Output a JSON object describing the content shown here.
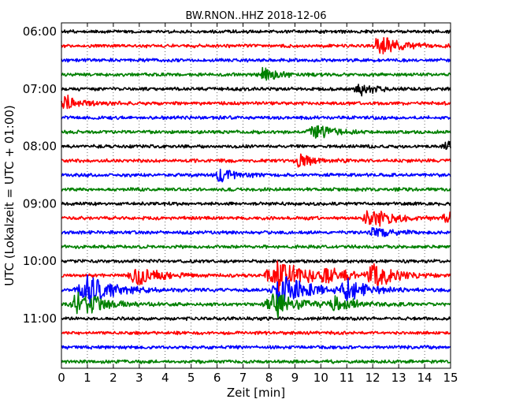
{
  "chart_data": {
    "type": "line",
    "title": "BW.RNON..HHZ 2018-12-06",
    "xlabel": "Zeit  [min]",
    "ylabel": "UTC (Lokalzeit = UTC + 01:00)",
    "xlim": [
      0,
      15
    ],
    "x_ticks": [
      "0",
      "1",
      "2",
      "3",
      "4",
      "5",
      "6",
      "7",
      "8",
      "9",
      "10",
      "11",
      "12",
      "13",
      "14",
      "15"
    ],
    "y_ticks": [
      "06:00",
      "07:00",
      "08:00",
      "09:00",
      "10:00",
      "11:00"
    ],
    "trace_minutes": 15,
    "first_trace": "06:00",
    "trace_colors": [
      "#000000",
      "#ff0000",
      "#0000ff",
      "#008000"
    ],
    "grid": "dotted vertical",
    "traces": [
      {
        "start": "06:00",
        "color": "#000000",
        "events": []
      },
      {
        "start": "06:15",
        "color": "#ff0000",
        "events": [
          {
            "minute": 12.3,
            "amp": 2.2
          }
        ]
      },
      {
        "start": "06:30",
        "color": "#0000ff",
        "events": []
      },
      {
        "start": "06:45",
        "color": "#008000",
        "events": [
          {
            "minute": 7.8,
            "amp": 1.6
          }
        ]
      },
      {
        "start": "07:00",
        "color": "#000000",
        "events": [
          {
            "minute": 11.5,
            "amp": 1.4
          }
        ]
      },
      {
        "start": "07:15",
        "color": "#ff0000",
        "events": [
          {
            "minute": 0.2,
            "amp": 1.6
          }
        ]
      },
      {
        "start": "07:30",
        "color": "#0000ff",
        "events": []
      },
      {
        "start": "07:45",
        "color": "#008000",
        "events": [
          {
            "minute": 9.8,
            "amp": 1.8
          }
        ]
      },
      {
        "start": "08:00",
        "color": "#000000",
        "events": [
          {
            "minute": 15.0,
            "amp": 1.6
          }
        ]
      },
      {
        "start": "08:15",
        "color": "#ff0000",
        "events": [
          {
            "minute": 9.2,
            "amp": 1.5
          }
        ]
      },
      {
        "start": "08:30",
        "color": "#0000ff",
        "events": [
          {
            "minute": 6.1,
            "amp": 1.6
          }
        ]
      },
      {
        "start": "08:45",
        "color": "#008000",
        "events": []
      },
      {
        "start": "09:00",
        "color": "#000000",
        "events": []
      },
      {
        "start": "09:15",
        "color": "#ff0000",
        "events": [
          {
            "minute": 11.9,
            "amp": 2.5
          },
          {
            "minute": 14.9,
            "amp": 1.6
          }
        ]
      },
      {
        "start": "09:30",
        "color": "#0000ff",
        "events": [
          {
            "minute": 12.1,
            "amp": 1.5
          }
        ]
      },
      {
        "start": "09:45",
        "color": "#008000",
        "events": []
      },
      {
        "start": "10:00",
        "color": "#000000",
        "events": []
      },
      {
        "start": "10:15",
        "color": "#ff0000",
        "events": [
          {
            "minute": 2.9,
            "amp": 2.2
          },
          {
            "minute": 8.3,
            "amp": 3.8
          },
          {
            "minute": 10.2,
            "amp": 2.2
          },
          {
            "minute": 12.0,
            "amp": 2.8
          }
        ]
      },
      {
        "start": "10:30",
        "color": "#0000ff",
        "events": [
          {
            "minute": 1.0,
            "amp": 3.4
          },
          {
            "minute": 8.5,
            "amp": 3.6
          },
          {
            "minute": 11.0,
            "amp": 2.6
          }
        ]
      },
      {
        "start": "10:45",
        "color": "#008000",
        "events": [
          {
            "minute": 0.7,
            "amp": 3.0
          },
          {
            "minute": 8.2,
            "amp": 3.2
          },
          {
            "minute": 10.6,
            "amp": 2.2
          }
        ]
      },
      {
        "start": "11:00",
        "color": "#000000",
        "events": []
      },
      {
        "start": "11:15",
        "color": "#ff0000",
        "events": []
      },
      {
        "start": "11:30",
        "color": "#0000ff",
        "events": []
      },
      {
        "start": "11:45",
        "color": "#008000",
        "events": []
      }
    ]
  }
}
